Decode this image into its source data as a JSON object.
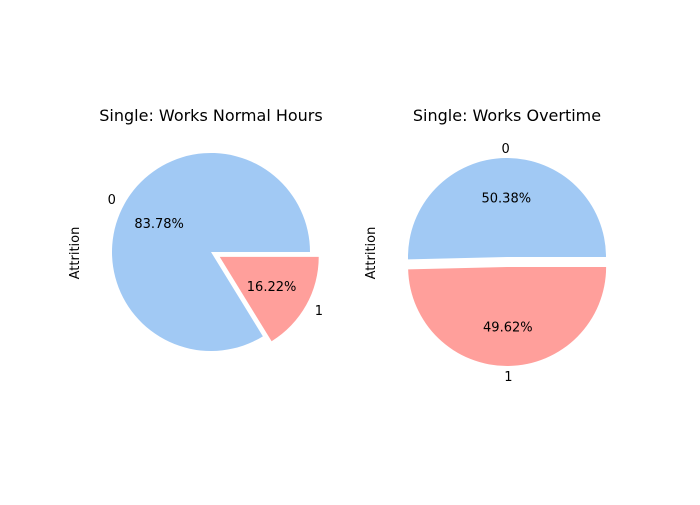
{
  "chart_data": [
    {
      "type": "pie",
      "title": "Single: Works Normal Hours",
      "ylabel": "Attrition",
      "categories": [
        "0",
        "1"
      ],
      "values": [
        83.78,
        16.22
      ],
      "pct_labels": [
        "83.78%",
        "16.22%"
      ],
      "colors": [
        "#a1c9f4",
        "#ff9f9b"
      ],
      "exploded": "1"
    },
    {
      "type": "pie",
      "title": "Single: Works Overtime",
      "ylabel": "Attrition",
      "categories": [
        "0",
        "1"
      ],
      "values": [
        50.38,
        49.62
      ],
      "pct_labels": [
        "50.38%",
        "49.62%"
      ],
      "colors": [
        "#a1c9f4",
        "#ff9f9b"
      ],
      "exploded": "1"
    }
  ]
}
